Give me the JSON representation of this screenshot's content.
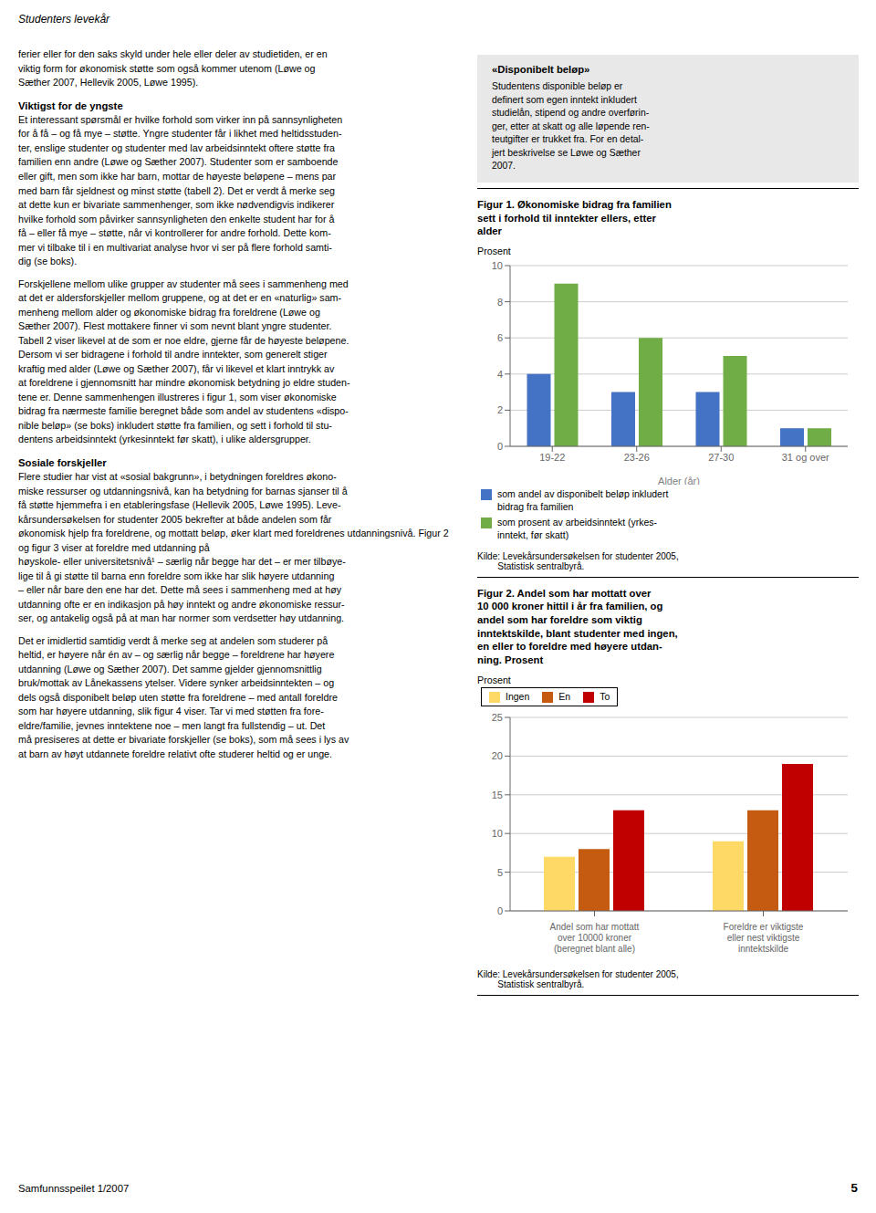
{
  "chart_data": [
    {
      "type": "bar",
      "title": "Figur 1. Økonomiske bidrag fra familien\nsett i forhold til inntekter ellers, etter\nalder",
      "ylabel": "Prosent",
      "xlabel": "Alder (år)",
      "categories": [
        "19-22",
        "23-26",
        "27-30",
        "31 og over"
      ],
      "series": [
        {
          "name": "som andel av disponibelt beløp inkludert\nbidrag fra familien",
          "color": "#4472C4",
          "values": [
            4.0,
            3.0,
            3.0,
            1.0
          ]
        },
        {
          "name": "som prosent av arbeidsinntekt (yrkes-\ninntekt, før skatt)",
          "color": "#70AD47",
          "values": [
            9.0,
            6.0,
            5.0,
            1.0
          ]
        }
      ],
      "ylim": [
        0,
        10
      ],
      "yticks": [
        0,
        2,
        4,
        6,
        8,
        10
      ],
      "grid": true,
      "legend": "lower left",
      "annotations": [
        "Studenters levekår",
        "ferier eller for den saks skyld under hele eller deler av studietiden, er en\nviktig form for økonomisk støtte som også kommer utenom (Løwe og\nSæther 2007, Hellevik 2005, Løwe 1995).",
        "Viktigst for de yngste",
        "Et interessant spørsmål er hvilke forhold som virker inn på sannsynligheten\nfor å få – og få mye – støtte. Yngre studenter får i likhet med heltidsstuden-\nter, enslige studenter og studenter med lav arbeidsinntekt oftere støtte fra\nfamilien enn andre (Løwe og Sæther 2007). Studenter som er samboende\neller gift, men som ikke har barn, mottar de høyeste beløpene – mens par\nmed barn får sjeldnest og minst støtte (tabell 2). Det er verdt å merke seg\nat dette kun er bivariate sammenhenger, som ikke nødvendigvis indikerer\nhvilke forhold som påvirker sannsynligheten den enkelte student har for å\nfå – eller få mye – støtte, når vi kontrollerer for andre forhold. Dette kom-\nmer vi tilbake til i en multivariat analyse hvor vi ser på flere forhold samti-\ndig (se boks).",
        "Forskjellene mellom ulike grupper av studenter må sees i sammenheng med\nat det er aldersforskjeller mellom gruppene, og at det er en «naturlig» sam-\nmenheng mellom alder og økonomiske bidrag fra foreldrene (Løwe og\nSæther 2007). Flest mottakere finner vi som nevnt blant yngre studenter.\nTabell 2 viser likevel at de som er noe eldre, gjerne får de høyeste beløpene.\nDersom vi ser bidragene i forhold til andre inntekter, som generelt stiger\nkraftig med alder (Løwe og Sæther 2007), får vi likevel et klart inntrykk av\nat foreldrene i gjennomsnitt har mindre økonomisk betydning jo eldre studen-\ntene er. Denne sammenhengen illustreres i figur 1, som viser økonomiske\nbidrag fra nærmeste familie beregnet både som andel av studentens «dispo-\nnible beløp» (se boks) inkludert støtte fra familien, og sett i forhold til stu-\ndentens arbeidsinntekt (yrkesinntekt før skatt), i ulike aldersgrupper.",
        "Sosiale forskjeller",
        "Flere studier har vist at «sosial bakgrunn», i betydningen foreldres økono-\nmiske ressurser og utdanningsnivå, kan ha betydning for barnas sjanser til å\nfå støtte hjemmefra i en etableringsfase (Hellevik 2005, Løwe 1995). Leve-\nkårsundersøkelsen for studenter 2005 bekrefter at både andelen som får\nøkonomisk hjelp fra foreldrene, og mottatt beløp, øker klart med foreldrenes utdanningsnivå. Figur 2 og figur 3 viser at foreldre med utdanning på\nhøyskole- eller universitetsnivå¹ – særlig når begge har det – er mer tilbøye-\nlige til å gi støtte til barna enn foreldre som ikke har slik høyere utdanning\n– eller når bare den ene har det. Dette må sees i sammenheng med at høy\nutdanning ofte er en indikasjon på høy inntekt og andre økonomiske ressur-\nser, og antakelig også på at man har normer som verdsetter høy utdanning.",
        "Det er imidlertid samtidig verdt å merke seg at andelen som studerer på\nheltid, er høyere når én av – og særlig når begge – foreldrene har høyere\nutdanning (Løwe og Sæther 2007). Det samme gjelder gjennomsnittlig\nbruk/mottak av Lånekassens ytelser. Videre synker arbeidsinntekten – og\ndels også disponibelt beløp uten støtte fra foreldrene – med antall foreldre\nsom har høyere utdanning, slik figur 4 viser. Tar vi med støtten fra fore-\neldre/familie, jevnes inntektene noe – men langt fra fullstendig – ut. Det\nmå presiseres at dette er bivariate forskjeller (se boks), som må sees i lys av\nat barn av høyt utdannete foreldre relativt ofte studerer heltid og er unge.",
        "«Disponibelt beløp»",
        "Studentens disponible beløp er\ndefinert som egen inntekt inkludert\nstudielån, stipend og andre overførin-\nger, etter at skatt og alle løpende ren-\nteutgifter er trukket fra. For en detal-\njert beskrivelse se Løwe og Sæther\n2007.",
        "Kilde: Levekårsundersøkelsen for studenter 2005,\n        Statistisk sentralbyrå.",
        "Samfunnsspeilet 1/2007",
        "5"
      ]
    },
    {
      "type": "bar",
      "title": "Figur 2. Andel som har mottatt over\n10 000 kroner hittil i år fra familien, og\nandel som har foreldre som viktig\ninntektskilde, blant studenter med ingen,\nen eller to foreldre med høyere utdan-\nning. Prosent",
      "ylabel": "Prosent",
      "categories": [
        "Andel som har mottatt\nover 10000 kroner\n(beregnet blant alle)",
        "Foreldre er viktigste\neller nest viktigste\ninntektskilde"
      ],
      "series": [
        {
          "name": "Ingen",
          "color": "#FFD966",
          "values": [
            7.0,
            9.0
          ]
        },
        {
          "name": "En",
          "color": "#C55A11",
          "values": [
            8.0,
            13.0
          ]
        },
        {
          "name": "To",
          "color": "#C00000",
          "values": [
            13.0,
            19.0
          ]
        }
      ],
      "ylim": [
        0,
        25
      ],
      "yticks": [
        0,
        5,
        10,
        15,
        20,
        25
      ],
      "grid": true,
      "legend": "upper left",
      "annotations": [
        "Kilde: Levekårsundersøkelsen for studenter 2005,\n        Statistisk sentralbyrå."
      ]
    }
  ]
}
